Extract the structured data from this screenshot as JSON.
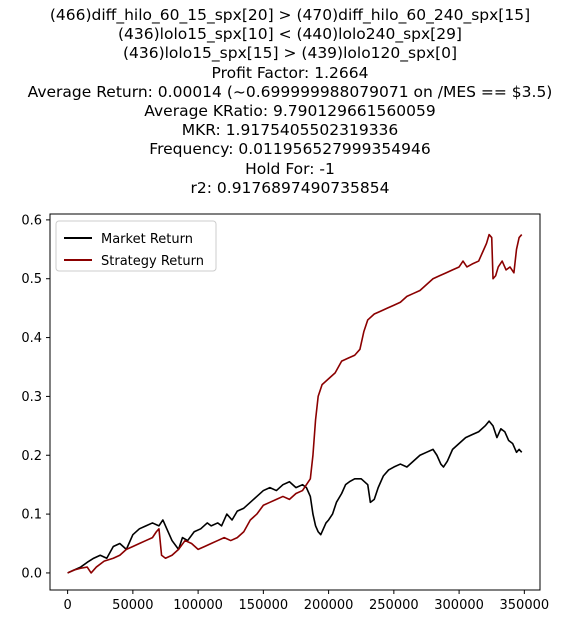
{
  "title_lines": [
    "(466)diff_hilo_60_15_spx[20] > (470)diff_hilo_60_240_spx[15]",
    "(436)lolo15_spx[10] < (440)lolo240_spx[29]",
    "(436)lolo15_spx[15] > (439)lolo120_spx[0]",
    "Profit Factor: 1.2664",
    "Average Return: 0.00014 (~0.699999988079071 on /MES == $3.5)",
    "Average KRatio: 9.790129661560059",
    "MKR: 1.9175405502319336",
    "Frequency: 0.011956527999354946",
    "Hold For: -1",
    "r2: 0.9176897490735854"
  ],
  "chart_data": {
    "type": "line",
    "title": "(466)diff_hilo_60_15_spx[20] > (470)diff_hilo_60_240_spx[15] / (436)lolo15_spx[10] < (440)lolo240_spx[29] / (436)lolo15_spx[15] > (439)lolo120_spx[0] / Profit Factor: 1.2664 / Average Return: 0.00014 (~0.699999988079071 on /MES == $3.5) / Average KRatio: 9.790129661560059 / MKR: 1.9175405502319336 / Frequency: 0.011956527999354946 / Hold For: -1 / r2: 0.9176897490735854",
    "xlabel": "",
    "ylabel": "",
    "xlim": [
      -13500,
      362000
    ],
    "ylim": [
      -0.029,
      0.61
    ],
    "xticks": [
      0,
      50000,
      100000,
      150000,
      200000,
      250000,
      300000,
      350000
    ],
    "xtick_labels": [
      "0",
      "50000",
      "100000",
      "150000",
      "200000",
      "250000",
      "300000",
      "350000"
    ],
    "yticks": [
      0.0,
      0.1,
      0.2,
      0.3,
      0.4,
      0.5,
      0.6
    ],
    "ytick_labels": [
      "0.0",
      "0.1",
      "0.2",
      "0.3",
      "0.4",
      "0.5",
      "0.6"
    ],
    "grid": false,
    "legend_position": "upper-left",
    "series": [
      {
        "name": "Market Return",
        "color": "#000000",
        "points": [
          [
            0,
            0.0
          ],
          [
            5000,
            0.005
          ],
          [
            10000,
            0.01
          ],
          [
            15000,
            0.018
          ],
          [
            20000,
            0.025
          ],
          [
            25000,
            0.03
          ],
          [
            30000,
            0.025
          ],
          [
            35000,
            0.045
          ],
          [
            40000,
            0.05
          ],
          [
            45000,
            0.04
          ],
          [
            50000,
            0.065
          ],
          [
            55000,
            0.075
          ],
          [
            60000,
            0.08
          ],
          [
            65000,
            0.085
          ],
          [
            70000,
            0.08
          ],
          [
            73000,
            0.09
          ],
          [
            76000,
            0.075
          ],
          [
            80000,
            0.055
          ],
          [
            85000,
            0.04
          ],
          [
            88000,
            0.06
          ],
          [
            92000,
            0.055
          ],
          [
            97000,
            0.07
          ],
          [
            102000,
            0.075
          ],
          [
            107000,
            0.085
          ],
          [
            110000,
            0.08
          ],
          [
            115000,
            0.085
          ],
          [
            118000,
            0.08
          ],
          [
            122000,
            0.1
          ],
          [
            126000,
            0.09
          ],
          [
            130000,
            0.105
          ],
          [
            135000,
            0.11
          ],
          [
            140000,
            0.12
          ],
          [
            145000,
            0.13
          ],
          [
            150000,
            0.14
          ],
          [
            155000,
            0.145
          ],
          [
            160000,
            0.14
          ],
          [
            165000,
            0.15
          ],
          [
            170000,
            0.155
          ],
          [
            175000,
            0.145
          ],
          [
            180000,
            0.15
          ],
          [
            183000,
            0.145
          ],
          [
            186000,
            0.13
          ],
          [
            188000,
            0.1
          ],
          [
            190000,
            0.08
          ],
          [
            192000,
            0.07
          ],
          [
            194000,
            0.065
          ],
          [
            196000,
            0.075
          ],
          [
            198000,
            0.085
          ],
          [
            200000,
            0.09
          ],
          [
            203000,
            0.1
          ],
          [
            206000,
            0.12
          ],
          [
            210000,
            0.135
          ],
          [
            213000,
            0.15
          ],
          [
            216000,
            0.155
          ],
          [
            220000,
            0.16
          ],
          [
            225000,
            0.16
          ],
          [
            230000,
            0.15
          ],
          [
            232000,
            0.12
          ],
          [
            235000,
            0.125
          ],
          [
            238000,
            0.145
          ],
          [
            242000,
            0.165
          ],
          [
            246000,
            0.175
          ],
          [
            250000,
            0.18
          ],
          [
            255000,
            0.185
          ],
          [
            260000,
            0.18
          ],
          [
            265000,
            0.19
          ],
          [
            270000,
            0.2
          ],
          [
            275000,
            0.205
          ],
          [
            280000,
            0.21
          ],
          [
            283000,
            0.2
          ],
          [
            286000,
            0.185
          ],
          [
            288000,
            0.18
          ],
          [
            291000,
            0.19
          ],
          [
            295000,
            0.21
          ],
          [
            300000,
            0.22
          ],
          [
            305000,
            0.23
          ],
          [
            310000,
            0.235
          ],
          [
            315000,
            0.24
          ],
          [
            320000,
            0.25
          ],
          [
            323000,
            0.258
          ],
          [
            326000,
            0.25
          ],
          [
            329000,
            0.23
          ],
          [
            332000,
            0.245
          ],
          [
            335000,
            0.24
          ],
          [
            338000,
            0.225
          ],
          [
            341000,
            0.22
          ],
          [
            344000,
            0.205
          ],
          [
            346000,
            0.21
          ],
          [
            348000,
            0.205
          ]
        ]
      },
      {
        "name": "Strategy Return",
        "color": "#8b0000",
        "points": [
          [
            0,
            0.0
          ],
          [
            5000,
            0.005
          ],
          [
            10000,
            0.008
          ],
          [
            15000,
            0.01
          ],
          [
            18000,
            0.0
          ],
          [
            22000,
            0.01
          ],
          [
            28000,
            0.02
          ],
          [
            35000,
            0.025
          ],
          [
            40000,
            0.03
          ],
          [
            45000,
            0.04
          ],
          [
            50000,
            0.045
          ],
          [
            55000,
            0.05
          ],
          [
            60000,
            0.055
          ],
          [
            65000,
            0.06
          ],
          [
            68000,
            0.07
          ],
          [
            70000,
            0.075
          ],
          [
            72000,
            0.03
          ],
          [
            75000,
            0.025
          ],
          [
            80000,
            0.03
          ],
          [
            85000,
            0.04
          ],
          [
            90000,
            0.055
          ],
          [
            95000,
            0.05
          ],
          [
            100000,
            0.04
          ],
          [
            105000,
            0.045
          ],
          [
            110000,
            0.05
          ],
          [
            115000,
            0.055
          ],
          [
            120000,
            0.06
          ],
          [
            125000,
            0.055
          ],
          [
            130000,
            0.06
          ],
          [
            135000,
            0.07
          ],
          [
            140000,
            0.09
          ],
          [
            145000,
            0.1
          ],
          [
            150000,
            0.115
          ],
          [
            155000,
            0.12
          ],
          [
            160000,
            0.125
          ],
          [
            165000,
            0.13
          ],
          [
            170000,
            0.125
          ],
          [
            175000,
            0.135
          ],
          [
            180000,
            0.14
          ],
          [
            183000,
            0.15
          ],
          [
            186000,
            0.16
          ],
          [
            188000,
            0.2
          ],
          [
            190000,
            0.26
          ],
          [
            192000,
            0.3
          ],
          [
            195000,
            0.32
          ],
          [
            200000,
            0.33
          ],
          [
            205000,
            0.34
          ],
          [
            210000,
            0.36
          ],
          [
            215000,
            0.365
          ],
          [
            220000,
            0.37
          ],
          [
            224000,
            0.38
          ],
          [
            227000,
            0.41
          ],
          [
            230000,
            0.43
          ],
          [
            235000,
            0.44
          ],
          [
            240000,
            0.445
          ],
          [
            245000,
            0.45
          ],
          [
            250000,
            0.455
          ],
          [
            255000,
            0.46
          ],
          [
            260000,
            0.47
          ],
          [
            265000,
            0.475
          ],
          [
            270000,
            0.48
          ],
          [
            275000,
            0.49
          ],
          [
            280000,
            0.5
          ],
          [
            285000,
            0.505
          ],
          [
            290000,
            0.51
          ],
          [
            295000,
            0.515
          ],
          [
            300000,
            0.52
          ],
          [
            303000,
            0.53
          ],
          [
            306000,
            0.52
          ],
          [
            310000,
            0.525
          ],
          [
            315000,
            0.53
          ],
          [
            318000,
            0.545
          ],
          [
            321000,
            0.56
          ],
          [
            323000,
            0.575
          ],
          [
            325000,
            0.57
          ],
          [
            326000,
            0.5
          ],
          [
            328000,
            0.505
          ],
          [
            330000,
            0.52
          ],
          [
            333000,
            0.53
          ],
          [
            336000,
            0.515
          ],
          [
            339000,
            0.52
          ],
          [
            342000,
            0.51
          ],
          [
            344000,
            0.55
          ],
          [
            346000,
            0.57
          ],
          [
            348000,
            0.575
          ]
        ]
      }
    ]
  }
}
